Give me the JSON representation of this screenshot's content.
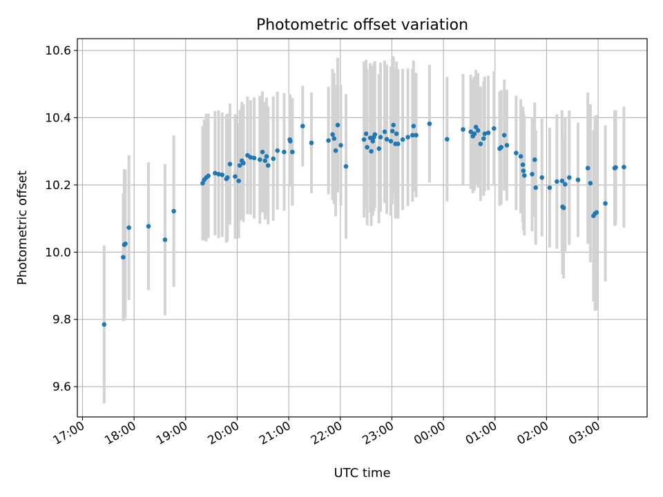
{
  "chart_data": {
    "type": "scatter",
    "title": "Photometric offset variation",
    "xlabel": "UTC time",
    "ylabel": "Photometric offset",
    "x_unit": "UTC time, hours after 17:00 on the first night",
    "xlim": [
      -0.1,
      10.95
    ],
    "ylim": [
      9.51,
      10.635
    ],
    "x_ticks": [
      0,
      1,
      2,
      3,
      4,
      5,
      6,
      7,
      8,
      9,
      10
    ],
    "x_tick_labels": [
      "17:00",
      "18:00",
      "19:00",
      "20:00",
      "21:00",
      "22:00",
      "23:00",
      "00:00",
      "01:00",
      "02:00",
      "03:00"
    ],
    "y_ticks": [
      9.6,
      9.8,
      10.0,
      10.2,
      10.4,
      10.6
    ],
    "y_tick_labels": [
      "9.6",
      "9.8",
      "10.0",
      "10.2",
      "10.4",
      "10.6"
    ],
    "grid": true,
    "colors": {
      "points": "#1f77b4",
      "error_bars": "#d3d3d3",
      "grid": "#b0b0b0"
    },
    "series": [
      {
        "points": [
          [
            0.42,
            9.785,
            0.235
          ],
          [
            0.79,
            9.985,
            0.19
          ],
          [
            0.81,
            10.022,
            0.225
          ],
          [
            0.83,
            10.025,
            0.22
          ],
          [
            0.9,
            10.073,
            0.215
          ],
          [
            1.28,
            10.077,
            0.19
          ],
          [
            1.6,
            10.037,
            0.225
          ],
          [
            1.77,
            10.122,
            0.225
          ],
          [
            2.33,
            10.205,
            0.17
          ],
          [
            2.36,
            10.215,
            0.18
          ],
          [
            2.4,
            10.222,
            0.19
          ],
          [
            2.44,
            10.227,
            0.185
          ],
          [
            2.57,
            10.235,
            0.185
          ],
          [
            2.64,
            10.232,
            0.19
          ],
          [
            2.71,
            10.23,
            0.185
          ],
          [
            2.79,
            10.218,
            0.19
          ],
          [
            2.81,
            10.222,
            0.19
          ],
          [
            2.86,
            10.262,
            0.18
          ],
          [
            2.96,
            10.225,
            0.185
          ],
          [
            3.03,
            10.212,
            0.17
          ],
          [
            3.05,
            10.258,
            0.165
          ],
          [
            3.09,
            10.272,
            0.175
          ],
          [
            3.12,
            10.265,
            0.175
          ],
          [
            3.2,
            10.288,
            0.175
          ],
          [
            3.26,
            10.282,
            0.17
          ],
          [
            3.33,
            10.28,
            0.18
          ],
          [
            3.44,
            10.275,
            0.19
          ],
          [
            3.49,
            10.298,
            0.18
          ],
          [
            3.54,
            10.272,
            0.175
          ],
          [
            3.57,
            10.285,
            0.175
          ],
          [
            3.6,
            10.258,
            0.175
          ],
          [
            3.7,
            10.278,
            0.185
          ],
          [
            3.78,
            10.302,
            0.175
          ],
          [
            3.91,
            10.298,
            0.175
          ],
          [
            4.02,
            10.335,
            0.135
          ],
          [
            4.03,
            10.33,
            0.135
          ],
          [
            4.07,
            10.298,
            0.16
          ],
          [
            4.27,
            10.375,
            0.12
          ],
          [
            4.44,
            10.325,
            0.15
          ],
          [
            4.77,
            10.332,
            0.16
          ],
          [
            4.85,
            10.35,
            0.195
          ],
          [
            4.88,
            10.338,
            0.195
          ],
          [
            4.91,
            10.302,
            0.195
          ],
          [
            4.95,
            10.378,
            0.2
          ],
          [
            5.01,
            10.318,
            0.18
          ],
          [
            5.11,
            10.255,
            0.215
          ],
          [
            5.46,
            10.335,
            0.232
          ],
          [
            5.5,
            10.352,
            0.22
          ],
          [
            5.52,
            10.312,
            0.232
          ],
          [
            5.58,
            10.34,
            0.222
          ],
          [
            5.6,
            10.3,
            0.222
          ],
          [
            5.63,
            10.33,
            0.222
          ],
          [
            5.65,
            10.342,
            0.22
          ],
          [
            5.67,
            10.35,
            0.218
          ],
          [
            5.75,
            10.308,
            0.222
          ],
          [
            5.78,
            10.342,
            0.222
          ],
          [
            5.86,
            10.358,
            0.212
          ],
          [
            5.9,
            10.336,
            0.222
          ],
          [
            5.98,
            10.33,
            0.222
          ],
          [
            6.01,
            10.36,
            0.218
          ],
          [
            6.03,
            10.378,
            0.205
          ],
          [
            6.07,
            10.322,
            0.222
          ],
          [
            6.09,
            10.352,
            0.215
          ],
          [
            6.12,
            10.322,
            0.222
          ],
          [
            6.21,
            10.335,
            0.21
          ],
          [
            6.31,
            10.342,
            0.205
          ],
          [
            6.4,
            10.348,
            0.198
          ],
          [
            6.42,
            10.375,
            0.195
          ],
          [
            6.47,
            10.348,
            0.185
          ],
          [
            6.73,
            10.382,
            0.175
          ],
          [
            7.07,
            10.336,
            0.185
          ],
          [
            7.38,
            10.365,
            0.165
          ],
          [
            7.53,
            10.358,
            0.17
          ],
          [
            7.57,
            10.345,
            0.17
          ],
          [
            7.6,
            10.352,
            0.17
          ],
          [
            7.63,
            10.372,
            0.17
          ],
          [
            7.67,
            10.362,
            0.17
          ],
          [
            7.72,
            10.322,
            0.17
          ],
          [
            7.78,
            10.338,
            0.17
          ],
          [
            7.8,
            10.352,
            0.17
          ],
          [
            7.87,
            10.355,
            0.17
          ],
          [
            7.98,
            10.368,
            0.17
          ],
          [
            8.09,
            10.308,
            0.17
          ],
          [
            8.12,
            10.312,
            0.17
          ],
          [
            8.18,
            10.348,
            0.165
          ],
          [
            8.23,
            10.318,
            0.165
          ],
          [
            8.41,
            10.295,
            0.17
          ],
          [
            8.5,
            10.285,
            0.17
          ],
          [
            8.54,
            10.26,
            0.172
          ],
          [
            8.55,
            10.242,
            0.178
          ],
          [
            8.57,
            10.228,
            0.178
          ],
          [
            8.72,
            10.232,
            0.17
          ],
          [
            8.77,
            10.275,
            0.17
          ],
          [
            8.79,
            10.192,
            0.17
          ],
          [
            8.91,
            10.222,
            0.175
          ],
          [
            9.06,
            10.192,
            0.178
          ],
          [
            9.2,
            10.21,
            0.2
          ],
          [
            9.3,
            10.212,
            0.21
          ],
          [
            9.31,
            10.135,
            0.2
          ],
          [
            9.33,
            10.132,
            0.21
          ],
          [
            9.36,
            10.202,
            0.2
          ],
          [
            9.44,
            10.222,
            0.2
          ],
          [
            9.61,
            10.215,
            0.17
          ],
          [
            9.8,
            10.25,
            0.225
          ],
          [
            9.85,
            10.205,
            0.235
          ],
          [
            9.91,
            10.108,
            0.255
          ],
          [
            9.94,
            10.115,
            0.29
          ],
          [
            9.97,
            10.118,
            0.29
          ],
          [
            10.14,
            10.145,
            0.232
          ],
          [
            10.32,
            10.25,
            0.172
          ],
          [
            10.34,
            10.252,
            0.17
          ],
          [
            10.5,
            10.253,
            0.18
          ]
        ]
      }
    ]
  }
}
